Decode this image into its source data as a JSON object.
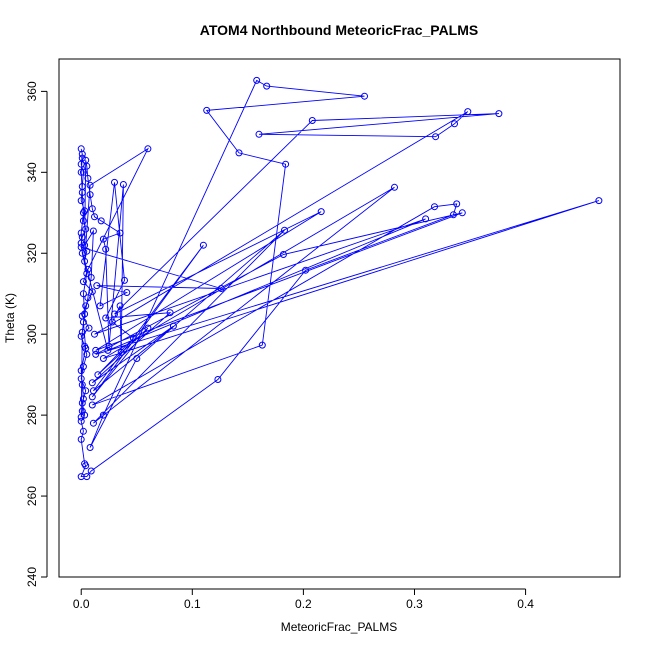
{
  "chart_data": {
    "type": "line",
    "title": "ATOM4 Northbound MeteoricFrac_PALMS",
    "xlabel": "MeteoricFrac_PALMS",
    "ylabel": "Theta (K)",
    "xlim": [
      -0.02,
      0.485
    ],
    "ylim": [
      240,
      368
    ],
    "xticks": [
      0.0,
      0.1,
      0.2,
      0.3,
      0.4
    ],
    "xtick_labels": [
      "0.0",
      "0.1",
      "0.2",
      "0.3",
      "0.4"
    ],
    "yticks": [
      240,
      260,
      280,
      300,
      320,
      340,
      360
    ],
    "ytick_labels": [
      "240",
      "260",
      "280",
      "300",
      "320",
      "340",
      "360"
    ],
    "color": "#0000ff",
    "marker": "open-circle",
    "grid": false,
    "series": [
      {
        "points": [
          [
            0.0,
            345.8
          ],
          [
            0.001,
            344.5
          ],
          [
            0.0,
            342.0
          ],
          [
            0.002,
            340.0
          ],
          [
            0.001,
            336.5
          ],
          [
            0.0,
            333.0
          ],
          [
            0.003,
            330.5
          ],
          [
            0.002,
            328.0
          ],
          [
            0.004,
            326.0
          ],
          [
            0.001,
            324.0
          ],
          [
            0.0,
            322.5
          ],
          [
            0.005,
            320.5
          ],
          [
            0.003,
            318.0
          ],
          [
            0.008,
            336.8
          ],
          [
            0.06,
            345.8
          ],
          [
            0.006,
            316.0
          ],
          [
            0.002,
            313.0
          ],
          [
            0.01,
            310.5
          ],
          [
            0.004,
            307.0
          ],
          [
            0.001,
            304.5
          ],
          [
            0.007,
            301.5
          ],
          [
            0.0,
            299.5
          ],
          [
            0.003,
            297.0
          ],
          [
            0.005,
            295.0
          ],
          [
            0.002,
            292.0
          ],
          [
            0.0,
            289.0
          ],
          [
            0.004,
            286.0
          ],
          [
            0.001,
            283.0
          ],
          [
            0.003,
            280.0
          ],
          [
            0.0,
            278.5
          ],
          [
            0.002,
            276.0
          ],
          [
            0.0,
            274.0
          ],
          [
            0.003,
            268.0
          ],
          [
            0.004,
            267.5
          ],
          [
            0.0,
            264.8
          ],
          [
            0.005,
            264.8
          ],
          [
            0.009,
            266.2
          ],
          [
            0.123,
            288.8
          ],
          [
            0.202,
            315.8
          ],
          [
            0.335,
            329.5
          ],
          [
            0.338,
            332.2
          ],
          [
            0.318,
            331.5
          ],
          [
            0.01,
            282.5
          ],
          [
            0.163,
            297.3
          ],
          [
            0.184,
            342.0
          ],
          [
            0.142,
            344.8
          ],
          [
            0.113,
            355.3
          ],
          [
            0.255,
            358.8
          ],
          [
            0.167,
            361.3
          ],
          [
            0.158,
            362.7
          ],
          [
            0.02,
            280.0
          ],
          [
            0.008,
            272.0
          ],
          [
            0.05,
            294.0
          ],
          [
            0.183,
            325.7
          ],
          [
            0.011,
            278.0
          ],
          [
            0.282,
            336.3
          ],
          [
            0.02,
            294.0
          ],
          [
            0.466,
            333.0
          ],
          [
            0.013,
            295.0
          ],
          [
            0.182,
            319.7
          ],
          [
            0.343,
            330.0
          ],
          [
            0.013,
            296.0
          ],
          [
            0.216,
            330.3
          ],
          [
            0.03,
            305.0
          ],
          [
            0.208,
            352.8
          ],
          [
            0.376,
            354.5
          ],
          [
            0.16,
            349.4
          ],
          [
            0.319,
            348.8
          ],
          [
            0.336,
            352.0
          ],
          [
            0.348,
            355.0
          ],
          [
            0.012,
            300.0
          ],
          [
            0.31,
            328.5
          ],
          [
            0.024,
            296.0
          ],
          [
            0.0,
            321.5
          ],
          [
            0.126,
            311.3
          ],
          [
            0.014,
            312.0
          ],
          [
            0.041,
            310.3
          ],
          [
            0.017,
            307.0
          ],
          [
            0.03,
            337.5
          ],
          [
            0.039,
            313.3
          ],
          [
            0.022,
            304.0
          ],
          [
            0.08,
            305.3
          ],
          [
            0.01,
            288.0
          ],
          [
            0.083,
            302.0
          ],
          [
            0.011,
            286.0
          ],
          [
            0.11,
            322.0
          ],
          [
            0.01,
            284.5
          ],
          [
            0.06,
            301.5
          ],
          [
            0.015,
            290.0
          ],
          [
            0.047,
            299.0
          ],
          [
            0.028,
            303.0
          ],
          [
            0.035,
            307.0
          ],
          [
            0.036,
            295.5
          ],
          [
            0.038,
            337.0
          ],
          [
            0.025,
            297.0
          ],
          [
            0.022,
            321.0
          ],
          [
            0.02,
            323.5
          ],
          [
            0.035,
            325.0
          ],
          [
            0.018,
            328.0
          ],
          [
            0.012,
            329.0
          ],
          [
            0.01,
            331.0
          ],
          [
            0.008,
            334.5
          ],
          [
            0.006,
            338.5
          ],
          [
            0.005,
            341.5
          ],
          [
            0.004,
            343.0
          ],
          [
            0.003,
            322.0
          ],
          [
            0.011,
            325.5
          ],
          [
            0.009,
            314.0
          ],
          [
            0.006,
            309.0
          ],
          [
            0.002,
            303.0
          ],
          [
            0.004,
            296.5
          ],
          [
            0.0,
            291.0
          ],
          [
            0.001,
            287.5
          ],
          [
            0.002,
            284.0
          ],
          [
            0.001,
            281.0
          ],
          [
            0.0,
            279.5
          ],
          [
            0.001,
            300.5
          ],
          [
            0.003,
            305.0
          ],
          [
            0.002,
            310.0
          ],
          [
            0.005,
            315.0
          ],
          [
            0.001,
            320.0
          ],
          [
            0.0,
            325.0
          ],
          [
            0.002,
            330.0
          ],
          [
            0.001,
            335.0
          ],
          [
            0.0,
            340.0
          ],
          [
            0.001,
            343.5
          ]
        ]
      }
    ]
  }
}
